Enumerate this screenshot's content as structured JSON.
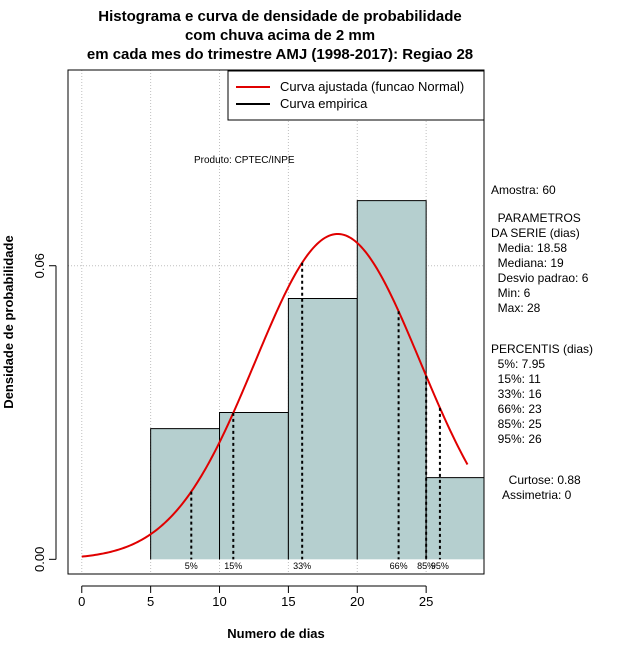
{
  "chart_data": {
    "type": "histogram",
    "title_lines": [
      "Histograma e curva de densidade de probabilidade",
      "com chuva acima de 2 mm",
      "em cada mes do trimestre AMJ (1998-2017): Regiao 28"
    ],
    "xlabel": "Numero de dias",
    "ylabel": "Densidade de probabilidade",
    "xlim": [
      -1,
      29.2
    ],
    "ylim": [
      -0.003,
      0.1
    ],
    "xticks": [
      0,
      5,
      10,
      15,
      20,
      25
    ],
    "yticks": [
      0.0,
      0.06
    ],
    "ytick_labels": [
      "0.00",
      "0.06"
    ],
    "grid_x": [
      0,
      5,
      10,
      15,
      20,
      25
    ],
    "grid_y": [
      0.06,
      0.1
    ],
    "bins": [
      {
        "x0": 5,
        "x1": 10,
        "density": 0.0267
      },
      {
        "x0": 10,
        "x1": 15,
        "density": 0.03
      },
      {
        "x0": 15,
        "x1": 20,
        "density": 0.0533
      },
      {
        "x0": 20,
        "x1": 25,
        "density": 0.0733
      },
      {
        "x0": 25,
        "x1": 29.2,
        "density": 0.0167
      }
    ],
    "normal_fit": {
      "mean": 18.58,
      "sd": 6,
      "x_from": 0,
      "x_to": 28
    },
    "percentiles": [
      {
        "label": "5%",
        "x": 7.95
      },
      {
        "label": "15%",
        "x": 11
      },
      {
        "label": "33%",
        "x": 16
      },
      {
        "label": "66%",
        "x": 23
      },
      {
        "label": "85%",
        "x": 25
      },
      {
        "label": "95%",
        "x": 26
      }
    ],
    "legend": [
      {
        "label": "Curva ajustada (funcao Normal)",
        "color": "#e00000"
      },
      {
        "label": "Curva empirica",
        "color": "#000000"
      }
    ],
    "annotation": "Produto: CPTEC/INPE"
  },
  "side": {
    "amostra": "Amostra: 60",
    "parametros": "  PARAMETROS\nDA SERIE (dias)\n  Media: 18.58\n  Mediana: 19\n  Desvio padrao: 6\n  Min: 6\n  Max: 28",
    "percentis": "PERCENTIS (dias)\n  5%: 7.95\n  15%: 11\n  33%: 16\n  66%: 23\n  85%: 25\n  95%: 26",
    "curtose": "  Curtose: 0.88\nAssimetria: 0"
  },
  "colors": {
    "bar_fill": "#b5cfcf",
    "curve": "#e00000",
    "grid": "#bfbfbf"
  }
}
